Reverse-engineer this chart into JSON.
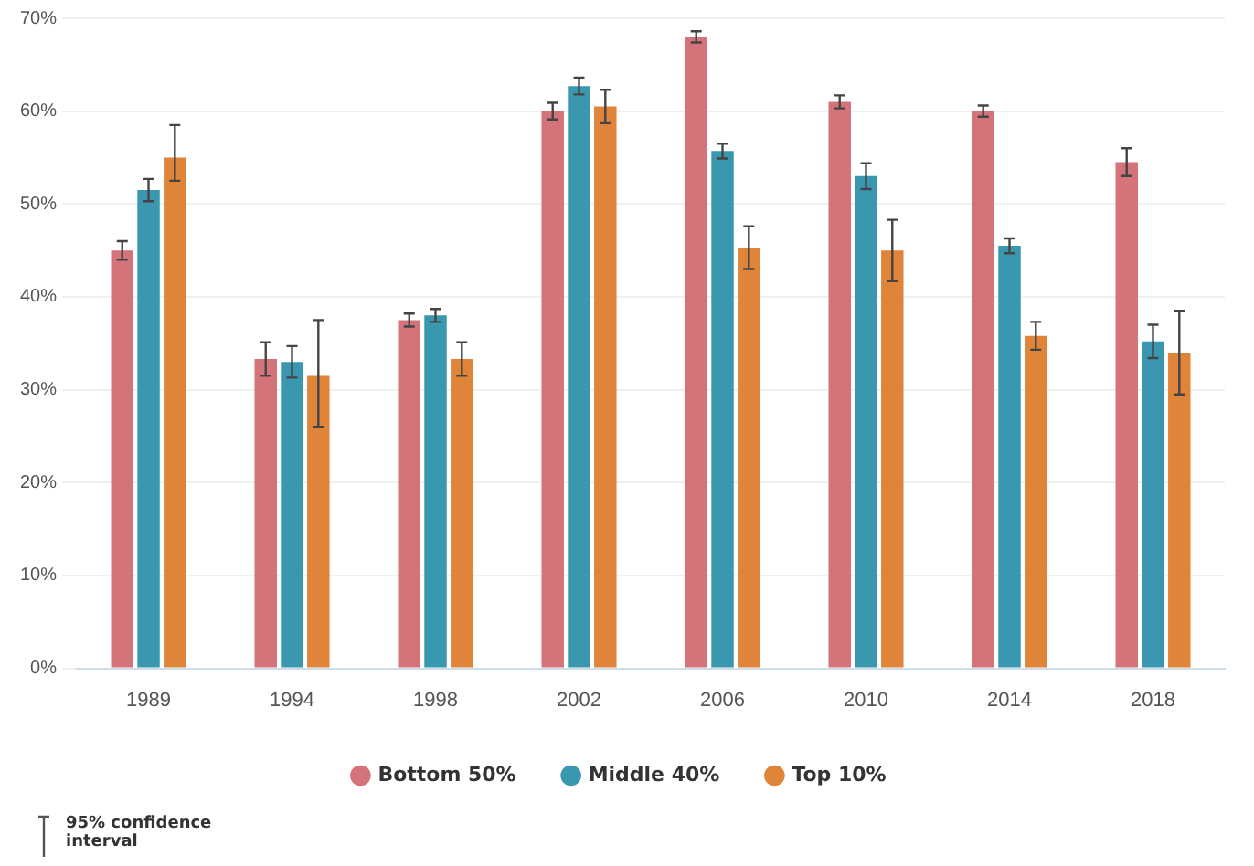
{
  "chart_data": {
    "type": "bar",
    "categories": [
      "1989",
      "1994",
      "1998",
      "2002",
      "2006",
      "2010",
      "2014",
      "2018"
    ],
    "series": [
      {
        "name": "Bottom 50%",
        "color": "#d4737a",
        "values": [
          45,
          33.3,
          37.5,
          60,
          68,
          61,
          60,
          54.5
        ],
        "errors": [
          1,
          1.8,
          0.7,
          0.9,
          0.6,
          0.7,
          0.6,
          1.5
        ]
      },
      {
        "name": "Middle 40%",
        "color": "#3a97b0",
        "values": [
          51.5,
          33,
          38,
          62.7,
          55.7,
          53,
          45.5,
          35.2
        ],
        "errors": [
          1.2,
          1.7,
          0.7,
          0.9,
          0.8,
          1.4,
          0.8,
          1.8
        ]
      },
      {
        "name": "Top 10%",
        "color": "#e0843a",
        "values": [
          55,
          31.5,
          33.3,
          60.5,
          45.3,
          45,
          35.8,
          34
        ],
        "errors": [
          [
            52.5,
            58.5
          ],
          [
            26,
            37.5
          ],
          1.8,
          1.8,
          2.3,
          3.3,
          1.5,
          4.5
        ]
      }
    ],
    "ylim": [
      0,
      70
    ],
    "yticks": [
      {
        "value": 0,
        "label": "0%"
      },
      {
        "value": 10,
        "label": "10%"
      },
      {
        "value": 20,
        "label": "20%"
      },
      {
        "value": 30,
        "label": "30%"
      },
      {
        "value": 40,
        "label": "40%"
      },
      {
        "value": 50,
        "label": "50%"
      },
      {
        "value": 60,
        "label": "60%"
      },
      {
        "value": 70,
        "label": "70%"
      }
    ],
    "grid": "y",
    "legend": "bottom",
    "annotations": [
      "95% confidence interval"
    ]
  }
}
